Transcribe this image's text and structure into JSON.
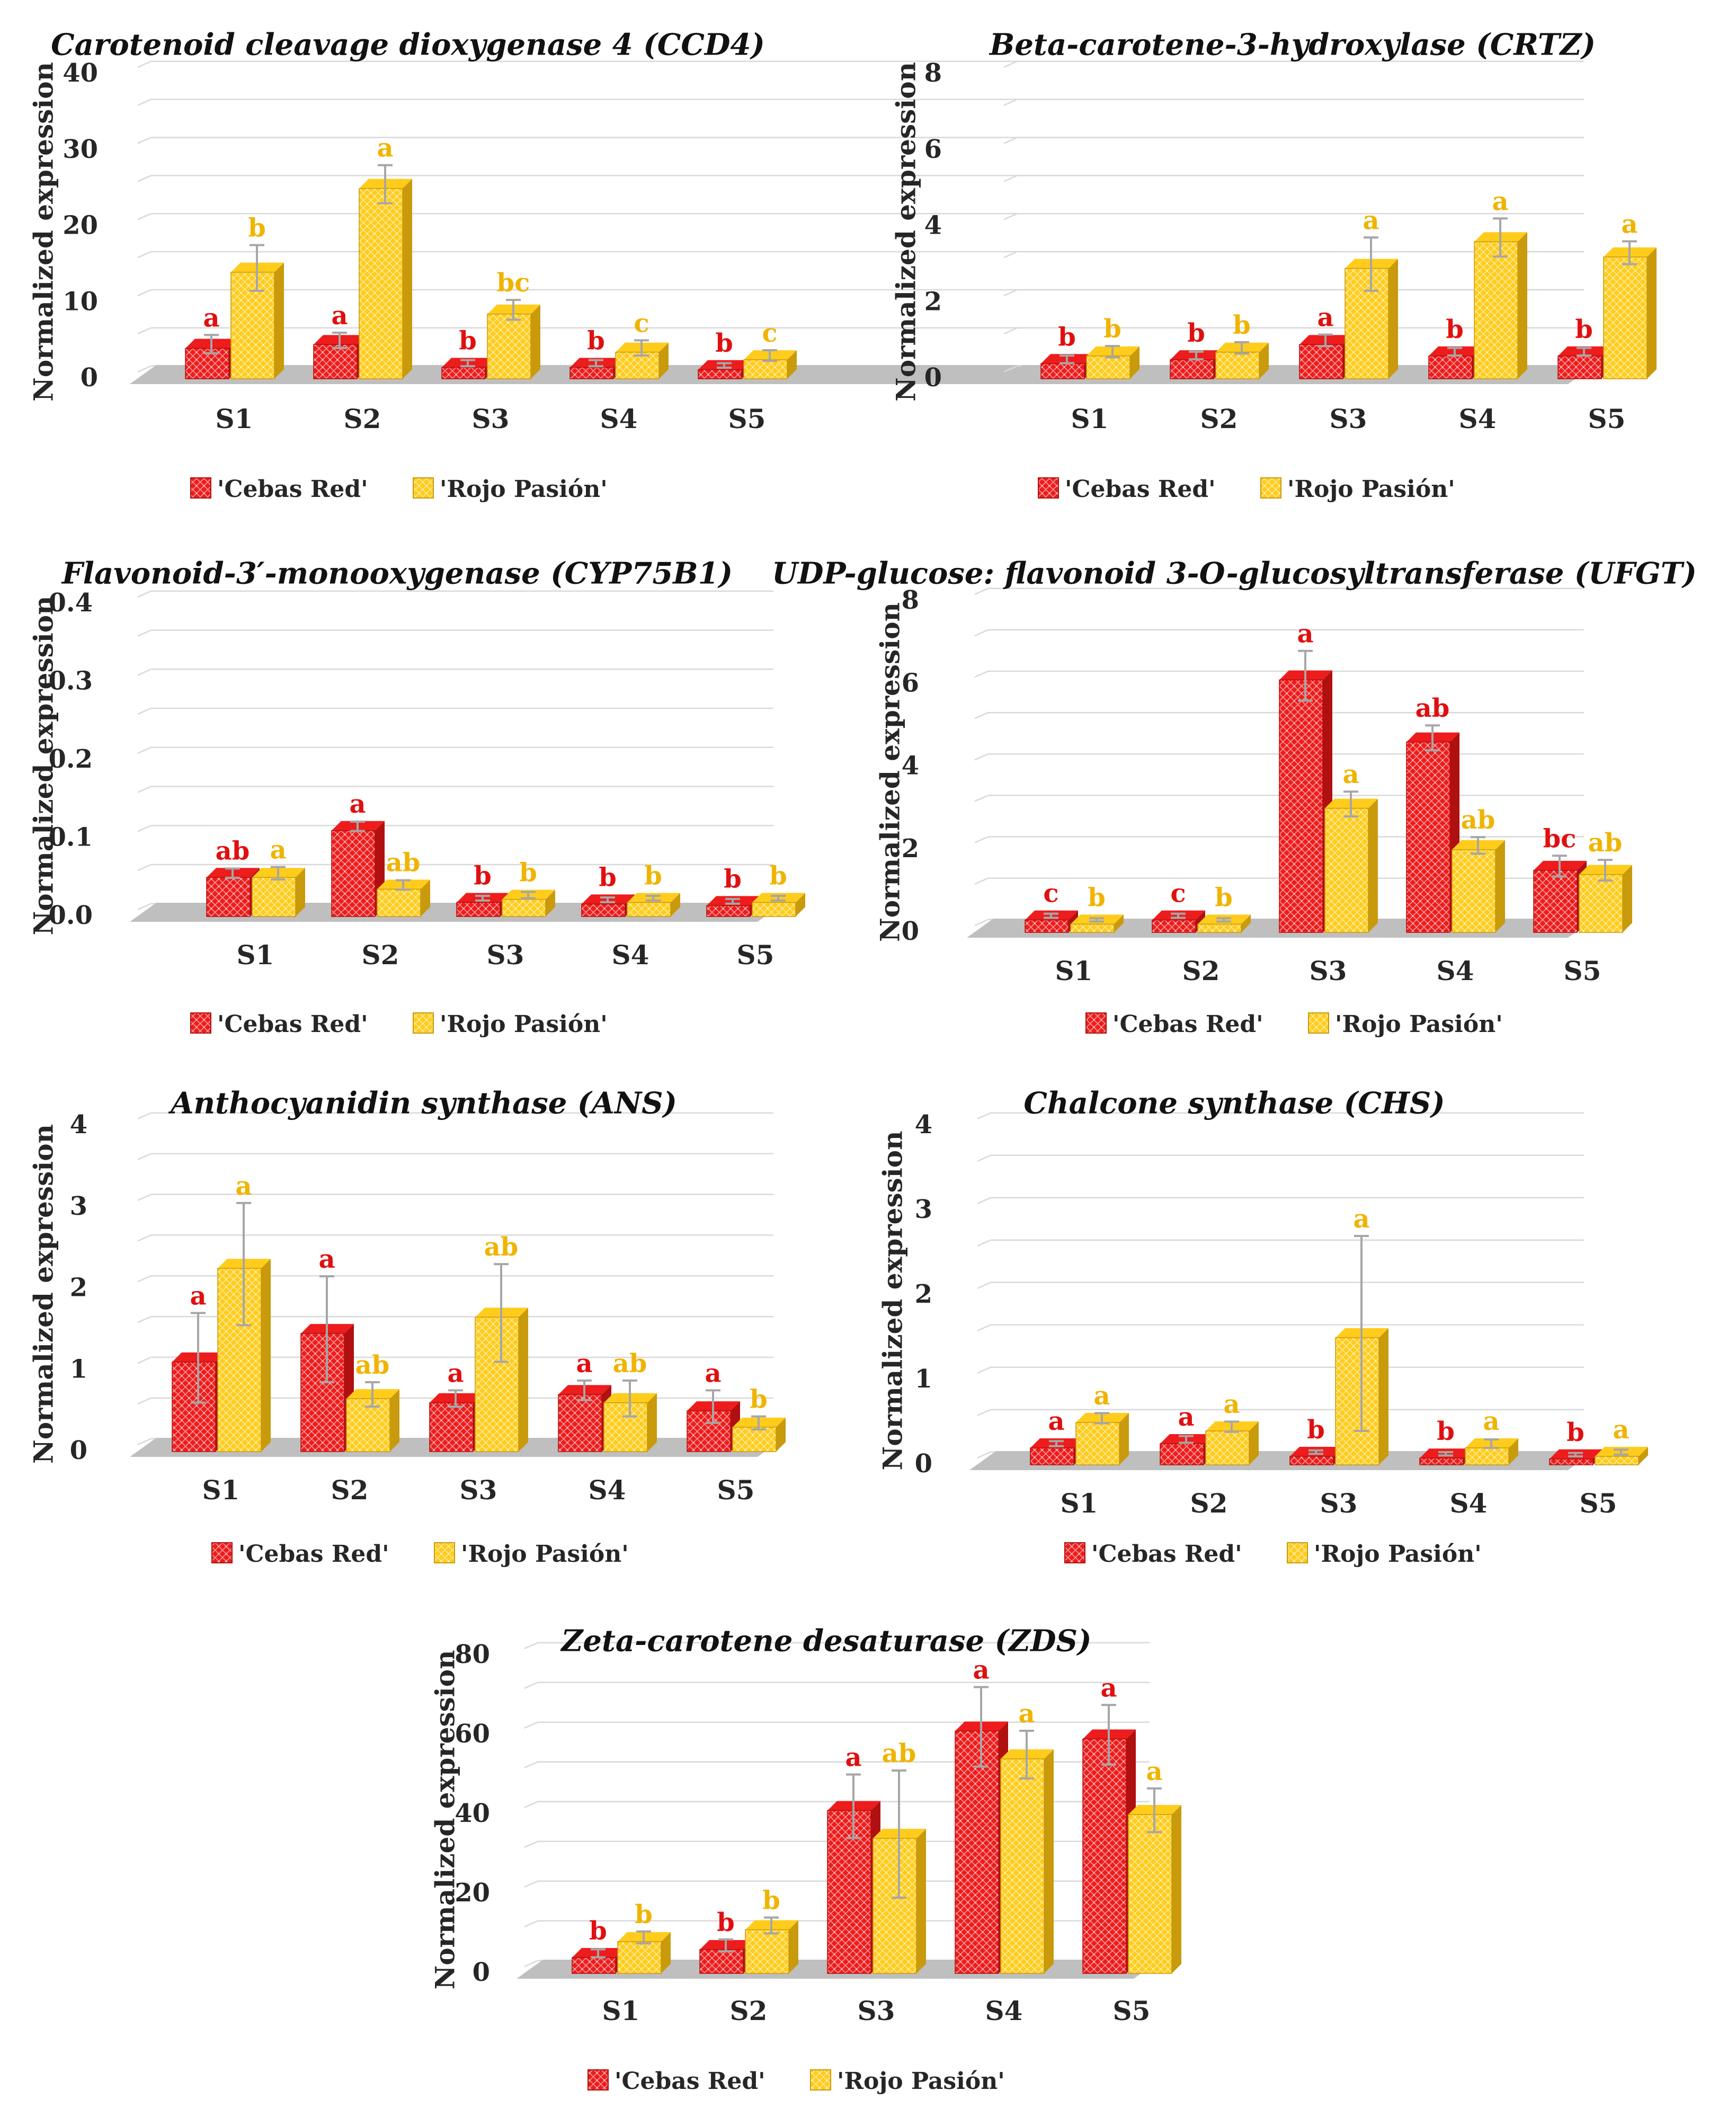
{
  "colors": {
    "cebas_red": "#ee1c1c",
    "cebas_red_dark": "#b01010",
    "rojo_pasion": "#ffcc1c",
    "rojo_pasion_dark": "#c89a0c",
    "red_letter": "#e01010",
    "gold_letter": "#f0b400",
    "grid": "#d9d9d9",
    "floor": "#bfbfbf",
    "error_bar": "#a6a6a6"
  },
  "chart_data": [
    {
      "id": "ccd4",
      "type": "bar",
      "title": "Carotenoid cleavage dioxygenase 4 (CCD4)",
      "ylabel": "Normalized expression",
      "xlabel": "",
      "categories": [
        "S1",
        "S2",
        "S3",
        "S4",
        "S5"
      ],
      "yticks": [
        "0",
        "10",
        "20",
        "30",
        "40"
      ],
      "ylim": [
        0,
        40
      ],
      "legend": [
        "'Cebas Red'",
        "'Rojo Pasión'"
      ],
      "series": [
        {
          "name": "'Cebas Red'",
          "values": [
            4.0,
            4.5,
            1.5,
            1.5,
            1.2
          ],
          "errors": [
            1.2,
            1.0,
            0.4,
            0.4,
            0.3
          ],
          "letters": [
            "a",
            "a",
            "b",
            "b",
            "b"
          ]
        },
        {
          "name": "'Rojo Pasión'",
          "values": [
            14.0,
            25.0,
            8.5,
            3.5,
            2.5
          ],
          "errors": [
            3.0,
            2.5,
            1.3,
            1.0,
            0.7
          ],
          "letters": [
            "b",
            "a",
            "bc",
            "c",
            "c"
          ]
        }
      ]
    },
    {
      "id": "crtz",
      "type": "bar",
      "title": "Beta-carotene-3-hydroxylase (CRTZ)",
      "ylabel": "Normalized expression",
      "xlabel": "",
      "categories": [
        "S1",
        "S2",
        "S3",
        "S4",
        "S5"
      ],
      "yticks": [
        "0",
        "2",
        "4",
        "6",
        "8"
      ],
      "ylim": [
        0,
        8
      ],
      "legend": [
        "'Cebas Red'",
        "'Rojo Pasión'"
      ],
      "series": [
        {
          "name": "'Cebas Red'",
          "values": [
            0.4,
            0.5,
            0.9,
            0.6,
            0.6
          ],
          "errors": [
            0.1,
            0.1,
            0.15,
            0.1,
            0.1
          ],
          "letters": [
            "b",
            "b",
            "a",
            "b",
            "b"
          ]
        },
        {
          "name": "'Rojo Pasión'",
          "values": [
            0.6,
            0.7,
            2.9,
            3.6,
            3.2
          ],
          "errors": [
            0.15,
            0.15,
            0.7,
            0.5,
            0.3
          ],
          "letters": [
            "b",
            "b",
            "a",
            "a",
            "a"
          ]
        }
      ]
    },
    {
      "id": "cyp75b1",
      "type": "bar",
      "title": "Flavonoid-3′-monooxygenase (CYP75B1)",
      "ylabel": "Normalized expression",
      "xlabel": "",
      "categories": [
        "S1",
        "S2",
        "S3",
        "S4",
        "S5"
      ],
      "yticks": [
        "0.0",
        "0.1",
        "0.2",
        "0.3",
        "0.4"
      ],
      "ylim": [
        0,
        0.4
      ],
      "legend": [
        "'Cebas Red'",
        "'Rojo Pasión'"
      ],
      "series": [
        {
          "name": "'Cebas Red'",
          "values": [
            0.05,
            0.11,
            0.018,
            0.016,
            0.014
          ],
          "errors": [
            0.006,
            0.006,
            0.003,
            0.003,
            0.003
          ],
          "letters": [
            "ab",
            "a",
            "b",
            "b",
            "b"
          ]
        },
        {
          "name": "'Rojo Pasión'",
          "values": [
            0.05,
            0.035,
            0.022,
            0.018,
            0.018
          ],
          "errors": [
            0.008,
            0.006,
            0.004,
            0.003,
            0.003
          ],
          "letters": [
            "a",
            "ab",
            "b",
            "b",
            "b"
          ]
        }
      ]
    },
    {
      "id": "ufgt",
      "type": "bar",
      "title": "UDP-glucose: flavonoid 3-O-glucosyltransferase (UFGT)",
      "ylabel": "Normalized expression",
      "xlabel": "",
      "categories": [
        "S1",
        "S2",
        "S3",
        "S4",
        "S5"
      ],
      "yticks": [
        "0",
        "2",
        "4",
        "6",
        "8"
      ],
      "ylim": [
        0,
        8
      ],
      "legend": [
        "'Cebas Red'",
        "'Rojo Pasión'"
      ],
      "series": [
        {
          "name": "'Cebas Red'",
          "values": [
            0.3,
            0.3,
            6.1,
            4.6,
            1.5
          ],
          "errors": [
            0.05,
            0.05,
            0.6,
            0.3,
            0.25
          ],
          "letters": [
            "c",
            "c",
            "a",
            "ab",
            "bc"
          ]
        },
        {
          "name": "'Rojo Pasión'",
          "values": [
            0.2,
            0.2,
            3.0,
            2.0,
            1.4
          ],
          "errors": [
            0.04,
            0.04,
            0.3,
            0.2,
            0.25
          ],
          "letters": [
            "b",
            "b",
            "a",
            "ab",
            "ab"
          ]
        }
      ]
    },
    {
      "id": "ans",
      "type": "bar",
      "title": "Anthocyanidin synthase (ANS)",
      "ylabel": "Normalized expression",
      "xlabel": "",
      "categories": [
        "S1",
        "S2",
        "S3",
        "S4",
        "S5"
      ],
      "yticks": [
        "0",
        "1",
        "2",
        "3",
        "4"
      ],
      "ylim": [
        0,
        4
      ],
      "legend": [
        "'Cebas Red'",
        "'Rojo Pasión'"
      ],
      "series": [
        {
          "name": "'Cebas Red'",
          "values": [
            1.1,
            1.45,
            0.6,
            0.7,
            0.5
          ],
          "errors": [
            0.55,
            0.65,
            0.1,
            0.12,
            0.2
          ],
          "letters": [
            "a",
            "a",
            "a",
            "a",
            "a"
          ]
        },
        {
          "name": "'Rojo Pasión'",
          "values": [
            2.25,
            0.65,
            1.65,
            0.6,
            0.3
          ],
          "errors": [
            0.75,
            0.15,
            0.6,
            0.22,
            0.08
          ],
          "letters": [
            "a",
            "ab",
            "ab",
            "ab",
            "b"
          ]
        }
      ]
    },
    {
      "id": "chs",
      "type": "bar",
      "title": "Chalcone synthase (CHS)",
      "ylabel": "Normalized expression",
      "xlabel": "",
      "categories": [
        "S1",
        "S2",
        "S3",
        "S4",
        "S5"
      ],
      "yticks": [
        "0",
        "1",
        "2",
        "3",
        "4"
      ],
      "ylim": [
        0,
        4
      ],
      "legend": [
        "'Cebas Red'",
        "'Rojo Pasión'"
      ],
      "series": [
        {
          "name": "'Cebas Red'",
          "values": [
            0.2,
            0.25,
            0.1,
            0.08,
            0.07
          ],
          "errors": [
            0.03,
            0.04,
            0.02,
            0.02,
            0.02
          ],
          "letters": [
            "a",
            "a",
            "b",
            "b",
            "b"
          ]
        },
        {
          "name": "'Rojo Pasión'",
          "values": [
            0.5,
            0.4,
            1.5,
            0.2,
            0.1
          ],
          "errors": [
            0.06,
            0.06,
            1.15,
            0.05,
            0.03
          ],
          "letters": [
            "a",
            "a",
            "a",
            "a",
            "a"
          ]
        }
      ]
    },
    {
      "id": "zds",
      "type": "bar",
      "title": "Zeta-carotene desaturase (ZDS)",
      "ylabel": "Normalized expression",
      "xlabel": "",
      "categories": [
        "S1",
        "S2",
        "S3",
        "S4",
        "S5"
      ],
      "yticks": [
        "0",
        "20",
        "40",
        "60",
        "80"
      ],
      "ylim": [
        0,
        80
      ],
      "legend": [
        "'Cebas Red'",
        "'Rojo Pasión'"
      ],
      "series": [
        {
          "name": "'Cebas Red'",
          "values": [
            4.0,
            6.0,
            41.0,
            61.0,
            59.0
          ],
          "errors": [
            1.0,
            1.5,
            8.0,
            10.0,
            7.5
          ],
          "letters": [
            "b",
            "b",
            "a",
            "a",
            "a"
          ]
        },
        {
          "name": "'Rojo Pasión'",
          "values": [
            8.0,
            11.0,
            34.0,
            54.0,
            40.0
          ],
          "errors": [
            1.5,
            2.0,
            16.0,
            6.0,
            5.5
          ],
          "letters": [
            "b",
            "b",
            "ab",
            "a",
            "a"
          ]
        }
      ]
    }
  ]
}
